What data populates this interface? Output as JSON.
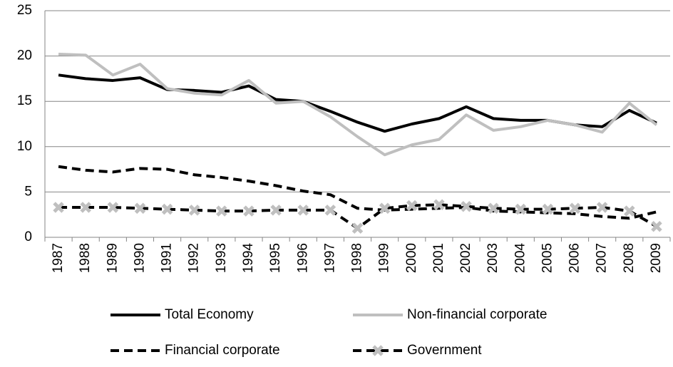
{
  "chart_data": {
    "type": "line",
    "categories": [
      "1987",
      "1988",
      "1989",
      "1990",
      "1991",
      "1992",
      "1993",
      "1994",
      "1995",
      "1996",
      "1997",
      "1998",
      "1999",
      "2000",
      "2001",
      "2002",
      "2003",
      "2004",
      "2005",
      "2006",
      "2007",
      "2008",
      "2009"
    ],
    "series": [
      {
        "name": "Total Economy",
        "color": "#000000",
        "dash": false,
        "values": [
          17.9,
          17.5,
          17.3,
          17.6,
          16.3,
          16.2,
          16.0,
          16.7,
          15.2,
          15.0,
          13.9,
          12.7,
          11.7,
          12.5,
          13.1,
          14.4,
          13.1,
          12.9,
          12.9,
          12.4,
          12.2,
          14.0,
          12.6
        ]
      },
      {
        "name": "Non-financial corporate",
        "color": "#bfbfbf",
        "dash": false,
        "values": [
          20.2,
          20.1,
          17.9,
          19.1,
          16.4,
          15.9,
          15.7,
          17.3,
          14.8,
          15.0,
          13.3,
          11.1,
          9.1,
          10.2,
          10.8,
          13.5,
          11.8,
          12.2,
          12.9,
          12.4,
          11.6,
          14.8,
          12.4
        ]
      },
      {
        "name": "Financial corporate",
        "color": "#000000",
        "dash": true,
        "values": [
          7.8,
          7.4,
          7.2,
          7.6,
          7.5,
          6.9,
          6.6,
          6.2,
          5.7,
          5.1,
          4.7,
          3.2,
          3.0,
          3.1,
          3.2,
          3.3,
          2.9,
          2.8,
          2.7,
          2.6,
          2.3,
          2.1,
          2.8
        ]
      },
      {
        "name": "Government",
        "color": "#000000",
        "dash": true,
        "marker_color": "#bfbfbf",
        "values": [
          3.3,
          3.3,
          3.3,
          3.2,
          3.1,
          3.0,
          2.9,
          2.9,
          3.0,
          3.0,
          3.0,
          1.0,
          3.2,
          3.5,
          3.6,
          3.4,
          3.2,
          3.1,
          3.1,
          3.2,
          3.3,
          2.9,
          1.2
        ]
      }
    ],
    "ylim": [
      0,
      25
    ],
    "yticks": [
      0,
      5,
      10,
      15,
      20,
      25
    ],
    "grid": true,
    "legend": "bottom"
  }
}
